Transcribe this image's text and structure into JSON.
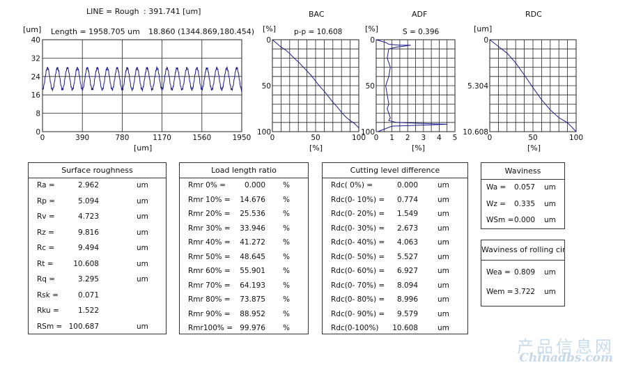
{
  "header": {
    "line_label": "LINE = Rough",
    "line_value": ": 391.741  [um]",
    "length_label": "Length = 1958.705 um",
    "point_label": "18.860 (1344.869,180.454)",
    "unit_um": "[um]"
  },
  "colors": {
    "series": "#1a1a8c",
    "grid": "#222222",
    "axes": "#222222"
  },
  "chart_data": [
    {
      "name": "profile",
      "type": "line",
      "title": "",
      "xlabel": "[um]",
      "ylabel": "[um]",
      "xlim": [
        0,
        1950
      ],
      "ylim": [
        0,
        40
      ],
      "xticks": [
        "0",
        "390",
        "780",
        "1170",
        "1560",
        "1950"
      ],
      "yticks": [
        "40",
        "32",
        "24",
        "16",
        "8",
        "0"
      ],
      "grid": true,
      "wave": {
        "center": 23.0,
        "amplitude": 4.7,
        "cycles": 20
      }
    },
    {
      "name": "BAC",
      "type": "line",
      "title": "BAC",
      "subtitle": "p-p = 10.608",
      "ylabel": "[%]",
      "xlabel": "[%]",
      "xlim": [
        0,
        100
      ],
      "ylim": [
        0,
        100
      ],
      "xticks": [
        "0",
        "50",
        "100"
      ],
      "yticks": [
        "0",
        "50",
        "100"
      ],
      "grid": true,
      "x": [
        0,
        5,
        10,
        15,
        20,
        25,
        30,
        35,
        40,
        45,
        50,
        55,
        60,
        65,
        70,
        75,
        80,
        85,
        90,
        95,
        100
      ],
      "y": [
        0,
        4,
        8,
        11,
        15,
        20,
        24,
        29,
        34,
        39,
        45,
        51,
        56,
        62,
        68,
        73,
        79,
        84,
        88,
        91,
        96
      ]
    },
    {
      "name": "ADF",
      "type": "line",
      "title": "ADF",
      "subtitle": "S = 0.396",
      "ylabel": "[%]",
      "xlabel": "[%]",
      "xlim": [
        0,
        5
      ],
      "ylim": [
        0,
        100
      ],
      "xticks": [
        "0",
        "1",
        "2",
        "3",
        "4",
        "5"
      ],
      "yticks": [
        "0",
        "50",
        "100"
      ],
      "grid": true,
      "x": [
        0,
        0.6,
        0.8,
        1.5,
        2.2,
        1.3,
        0.8,
        0.7,
        0.9,
        0.8,
        0.6,
        0.7,
        0.8,
        0.7,
        0.8,
        0.9,
        0.8,
        1.3,
        2.8,
        4.5,
        1.0,
        0.1
      ],
      "y": [
        0,
        3,
        5,
        6,
        6,
        8,
        10,
        20,
        30,
        40,
        50,
        60,
        70,
        75,
        80,
        85,
        88,
        90,
        91,
        92,
        94,
        100
      ]
    },
    {
      "name": "RDC",
      "type": "line",
      "title": "RDC",
      "ylabel": "[um]",
      "xlabel": "[%]",
      "xlim": [
        0,
        100
      ],
      "ylim": [
        0,
        10.608
      ],
      "xticks": [
        "0",
        "50",
        "100"
      ],
      "yticks": [
        "0",
        "5.304",
        "10.608"
      ],
      "grid": true,
      "x": [
        0,
        10,
        20,
        30,
        40,
        50,
        60,
        70,
        80,
        90,
        100
      ],
      "y": [
        0,
        0.774,
        1.549,
        2.673,
        4.063,
        5.527,
        6.927,
        8.094,
        8.996,
        9.579,
        10.608
      ]
    }
  ],
  "tables": {
    "surface": {
      "title": "Surface roughness",
      "rows": [
        {
          "label": "Ra  =",
          "value": "2.962",
          "unit": "um"
        },
        {
          "label": "Rp  =",
          "value": "5.094",
          "unit": "um"
        },
        {
          "label": "Rv  =",
          "value": "4.723",
          "unit": "um"
        },
        {
          "label": "Rz  =",
          "value": "9.816",
          "unit": "um"
        },
        {
          "label": "Rc  =",
          "value": "9.494",
          "unit": "um"
        },
        {
          "label": "Rt  =",
          "value": "10.608",
          "unit": "um"
        },
        {
          "label": "Rq  =",
          "value": "3.295",
          "unit": "um"
        },
        {
          "label": "Rsk =",
          "value": "0.071",
          "unit": ""
        },
        {
          "label": "Rku =",
          "value": "1.522",
          "unit": ""
        },
        {
          "label": "RSm =",
          "value": "100.687",
          "unit": "um"
        }
      ]
    },
    "load": {
      "title": "Load length ratio",
      "rows": [
        {
          "label": "Rmr  0% =",
          "value": "0.000",
          "unit": "%"
        },
        {
          "label": "Rmr 10% =",
          "value": "14.676",
          "unit": "%"
        },
        {
          "label": "Rmr 20% =",
          "value": "25.536",
          "unit": "%"
        },
        {
          "label": "Rmr 30% =",
          "value": "33.946",
          "unit": "%"
        },
        {
          "label": "Rmr 40% =",
          "value": "41.272",
          "unit": "%"
        },
        {
          "label": "Rmr 50% =",
          "value": "48.645",
          "unit": "%"
        },
        {
          "label": "Rmr 60% =",
          "value": "55.901",
          "unit": "%"
        },
        {
          "label": "Rmr 70% =",
          "value": "64.193",
          "unit": "%"
        },
        {
          "label": "Rmr 80% =",
          "value": "73.875",
          "unit": "%"
        },
        {
          "label": "Rmr 90% =",
          "value": "88.952",
          "unit": "%"
        },
        {
          "label": "Rmr100% =",
          "value": "99.976",
          "unit": "%"
        }
      ]
    },
    "cutting": {
      "title": "Cutting level difference",
      "rows": [
        {
          "label": "Rdc(    0%) =",
          "value": "0.000",
          "unit": "um"
        },
        {
          "label": "Rdc(0- 10%) =",
          "value": "0.774",
          "unit": "um"
        },
        {
          "label": "Rdc(0- 20%) =",
          "value": "1.549",
          "unit": "um"
        },
        {
          "label": "Rdc(0- 30%) =",
          "value": "2.673",
          "unit": "um"
        },
        {
          "label": "Rdc(0- 40%) =",
          "value": "4.063",
          "unit": "um"
        },
        {
          "label": "Rdc(0- 50%) =",
          "value": "5.527",
          "unit": "um"
        },
        {
          "label": "Rdc(0- 60%) =",
          "value": "6.927",
          "unit": "um"
        },
        {
          "label": "Rdc(0- 70%) =",
          "value": "8.094",
          "unit": "um"
        },
        {
          "label": "Rdc(0- 80%) =",
          "value": "8.996",
          "unit": "um"
        },
        {
          "label": "Rdc(0- 90%) =",
          "value": "9.579",
          "unit": "um"
        },
        {
          "label": "Rdc(0-100%)",
          "value": "10.608",
          "unit": "um"
        }
      ]
    },
    "waviness": {
      "title": "Waviness",
      "rows": [
        {
          "label": "Wa  =",
          "value": "0.057",
          "unit": "um"
        },
        {
          "label": "Wz  =",
          "value": "0.335",
          "unit": "um"
        },
        {
          "label": "WSm =",
          "value": "0.000",
          "unit": "um"
        }
      ]
    },
    "rolling": {
      "title": "Waviness of rolling circle",
      "rows": [
        {
          "label": "Wea  =",
          "value": "0.809",
          "unit": "um"
        },
        {
          "label": "Wem  =",
          "value": "3.722",
          "unit": "um"
        }
      ]
    }
  },
  "watermark": {
    "line1": "产品信息网",
    "line2": "Chinadbs.com"
  }
}
